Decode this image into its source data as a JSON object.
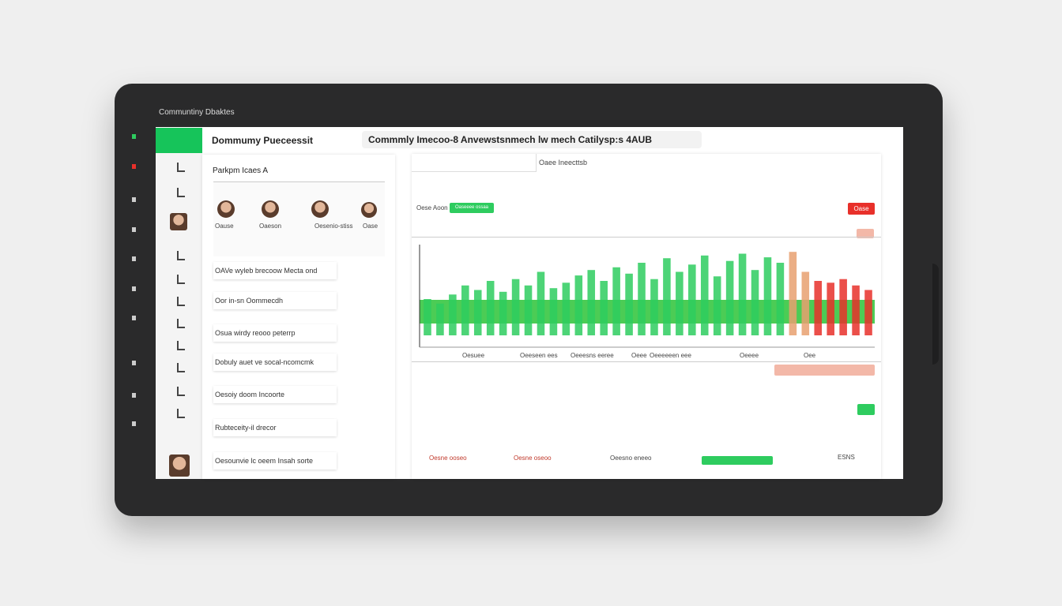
{
  "app_title": "Communtiny Dbaktes",
  "header": {
    "left_title": "Dommumy Pueceessit",
    "main_title": "Commmly Imecoo-8 Anvewstsnmech lw mech Catilysp:s 4AUB"
  },
  "left_panel": {
    "title": "Parkpm Icaes A",
    "avatar_labels": [
      "Oause",
      "Oaeson",
      "Oesenio-stiss",
      "Oase"
    ],
    "items": [
      "OAVe wyleb brecoow Mecta ond",
      "Oor in-sn Oommecdh",
      "Osua wirdy reooo peterrp",
      "Dobuly auet ve socal-ncomcmk",
      "Oesoiy doom Incoorte",
      "Rubteceity-il drecor",
      "Oesounvie lc oeem Insah sorte"
    ]
  },
  "main_panel": {
    "tab_label": "Oaee Ineecttsb",
    "filter_label": "Oese Aoon",
    "green_pill": "Oaseeee ossaa",
    "red_button": "Oase",
    "bottom_labels": [
      "Oesuee",
      "Oeeseen ees",
      "Oeeesns eeree",
      "Oeee",
      "Oeeeeeen eee",
      "Oeeee",
      "Oee"
    ],
    "stats": [
      "Oesne ooseo",
      "Oesne oseoo",
      "Oeesno eneeo",
      "ESNS"
    ]
  },
  "chart_data": {
    "type": "bar",
    "values": [
      40,
      35,
      45,
      55,
      50,
      60,
      48,
      62,
      55,
      70,
      52,
      58,
      66,
      72,
      60,
      75,
      68,
      80,
      62,
      85,
      70,
      78,
      88,
      65,
      82,
      90,
      72,
      86,
      80,
      92,
      70,
      60,
      58,
      62,
      55,
      50
    ],
    "bar_colors": [
      "#2ecc5f",
      "#2ecc5f",
      "#2ecc5f",
      "#2ecc5f",
      "#2ecc5f",
      "#2ecc5f",
      "#2ecc5f",
      "#2ecc5f",
      "#2ecc5f",
      "#2ecc5f",
      "#2ecc5f",
      "#2ecc5f",
      "#2ecc5f",
      "#2ecc5f",
      "#2ecc5f",
      "#2ecc5f",
      "#2ecc5f",
      "#2ecc5f",
      "#2ecc5f",
      "#2ecc5f",
      "#2ecc5f",
      "#2ecc5f",
      "#2ecc5f",
      "#2ecc5f",
      "#2ecc5f",
      "#2ecc5f",
      "#2ecc5f",
      "#2ecc5f",
      "#2ecc5f",
      "#e8a070",
      "#e8a070",
      "#e8302a",
      "#e8302a",
      "#e8302a",
      "#e8302a",
      "#e8302a"
    ],
    "ylim": [
      0,
      100
    ]
  }
}
